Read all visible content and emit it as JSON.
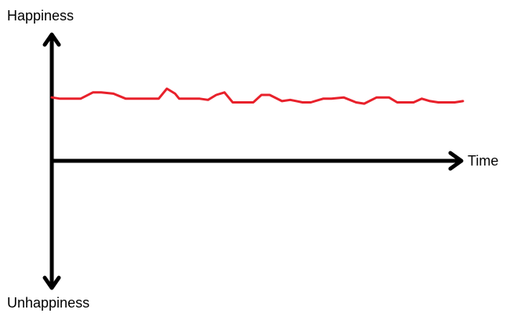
{
  "chart_data": {
    "type": "line",
    "ylabel_top": "Happiness",
    "ylabel_bottom": "Unhappiness",
    "xlabel": "Time",
    "ylim": [
      -1,
      1
    ],
    "xlim": [
      0,
      1
    ],
    "grid": false,
    "legend": "none",
    "series": [
      {
        "color": "#e8212b",
        "x": [
          0,
          0.02,
          0.04,
          0.07,
          0.1,
          0.12,
          0.15,
          0.18,
          0.2,
          0.23,
          0.26,
          0.28,
          0.3,
          0.31,
          0.33,
          0.36,
          0.38,
          0.4,
          0.42,
          0.44,
          0.47,
          0.49,
          0.51,
          0.53,
          0.56,
          0.58,
          0.61,
          0.63,
          0.66,
          0.68,
          0.71,
          0.74,
          0.76,
          0.79,
          0.82,
          0.84,
          0.86,
          0.88,
          0.9,
          0.92,
          0.94,
          0.96,
          0.98,
          1
        ],
        "y": [
          0.51,
          0.5,
          0.5,
          0.5,
          0.55,
          0.55,
          0.54,
          0.5,
          0.5,
          0.5,
          0.5,
          0.58,
          0.54,
          0.5,
          0.5,
          0.5,
          0.49,
          0.53,
          0.55,
          0.47,
          0.47,
          0.47,
          0.53,
          0.53,
          0.48,
          0.49,
          0.47,
          0.47,
          0.5,
          0.5,
          0.51,
          0.47,
          0.46,
          0.51,
          0.51,
          0.47,
          0.47,
          0.47,
          0.5,
          0.48,
          0.47,
          0.47,
          0.47,
          0.48
        ]
      }
    ]
  }
}
